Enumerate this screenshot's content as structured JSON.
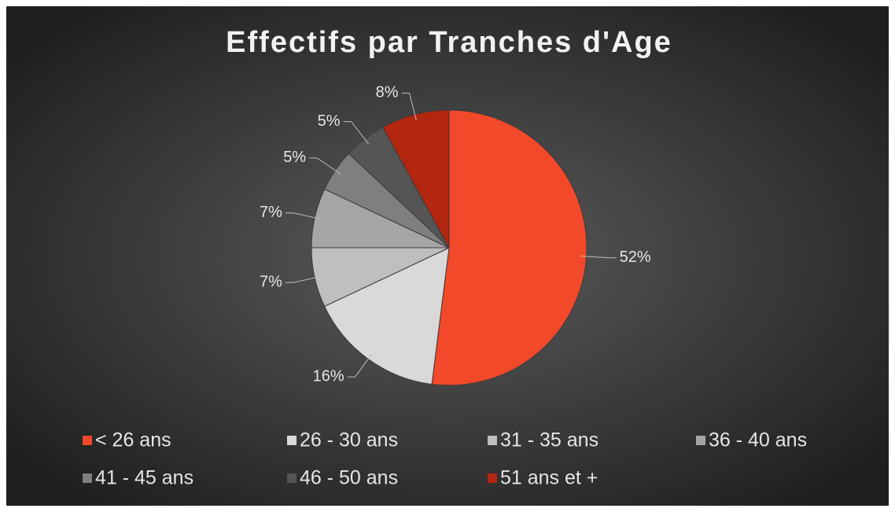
{
  "chart_data": {
    "type": "pie",
    "title": "Effectifs par Tranches d'Age",
    "categories": [
      "< 26 ans",
      "26 - 30 ans",
      "31 - 35 ans",
      "36 - 40 ans",
      "41 - 45 ans",
      "46 - 50 ans",
      "51 ans et +"
    ],
    "values": [
      52,
      16,
      7,
      7,
      5,
      5,
      8
    ],
    "value_labels": [
      "52%",
      "16%",
      "7%",
      "7%",
      "5%",
      "5%",
      "8%"
    ],
    "colors": [
      "#f2492a",
      "#d9d9d9",
      "#bfbfbf",
      "#a5a5a5",
      "#7f7f7f",
      "#555555",
      "#b3260f"
    ],
    "legend": "bottom"
  }
}
